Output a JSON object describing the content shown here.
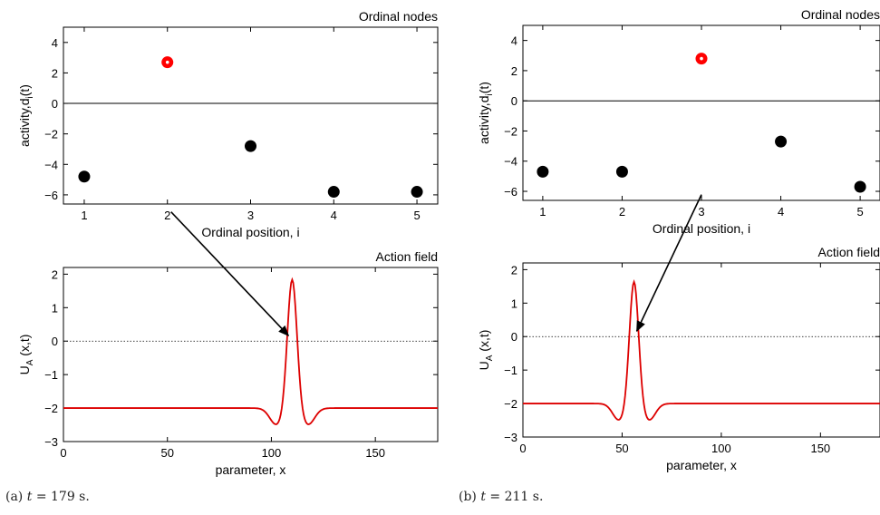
{
  "captions": [
    {
      "prefix": "(a) ",
      "variable": "t",
      "rest": " = 179 s."
    },
    {
      "prefix": "(b) ",
      "variable": "t",
      "rest": " = 211 s."
    }
  ],
  "colors": {
    "highlight": "#ff0000",
    "node": "#000000",
    "field": "#dd0000"
  },
  "chart_data": [
    {
      "panel": "a",
      "type": "scatter",
      "title": "Ordinal nodes",
      "xlabel": "Ordinal position, i",
      "ylabel": "activity,d_i(t)",
      "xlim": [
        0.75,
        5.25
      ],
      "ylim": [
        -6.6,
        5
      ],
      "xticks": [
        1,
        2,
        3,
        4,
        5
      ],
      "yticks": [
        -6,
        -4,
        -2,
        0,
        2,
        4
      ],
      "x": [
        1,
        2,
        3,
        4,
        5
      ],
      "y": [
        -4.8,
        2.7,
        -2.8,
        -5.8,
        -5.8
      ],
      "highlight_index": 1,
      "zero_line": "solid",
      "grid": false
    },
    {
      "panel": "a",
      "type": "line",
      "title": "Action field",
      "xlabel": "parameter, x",
      "ylabel": "U_A (x,t)",
      "xlim": [
        0,
        180
      ],
      "ylim": [
        -3,
        2.2
      ],
      "xticks": [
        0,
        50,
        100,
        150
      ],
      "yticks": [
        -3,
        -2,
        -1,
        0,
        1,
        2
      ],
      "peak_center": 110,
      "peak_height": 1.9,
      "baseline": -2,
      "dip": -2.5,
      "zero_line": "dotted",
      "grid": false
    },
    {
      "panel": "b",
      "type": "scatter",
      "title": "Ordinal nodes",
      "xlabel": "Ordinal position, i",
      "ylabel": "activity,d_i(t)",
      "xlim": [
        0.75,
        5.25
      ],
      "ylim": [
        -6.6,
        5
      ],
      "xticks": [
        1,
        2,
        3,
        4,
        5
      ],
      "yticks": [
        -6,
        -4,
        -2,
        0,
        2,
        4
      ],
      "x": [
        1,
        2,
        3,
        4,
        5
      ],
      "y": [
        -4.7,
        -4.7,
        2.8,
        -2.7,
        -5.7
      ],
      "highlight_index": 2,
      "zero_line": "solid",
      "grid": false
    },
    {
      "panel": "b",
      "type": "line",
      "title": "Action field",
      "xlabel": "parameter, x",
      "ylabel": "U_A (x,t)",
      "xlim": [
        0,
        180
      ],
      "ylim": [
        -3,
        2.2
      ],
      "xticks": [
        0,
        50,
        100,
        150
      ],
      "yticks": [
        -3,
        -2,
        -1,
        0,
        1,
        2
      ],
      "peak_center": 56,
      "peak_height": 1.7,
      "baseline": -2,
      "dip": -2.5,
      "zero_line": "dotted",
      "grid": false
    }
  ]
}
